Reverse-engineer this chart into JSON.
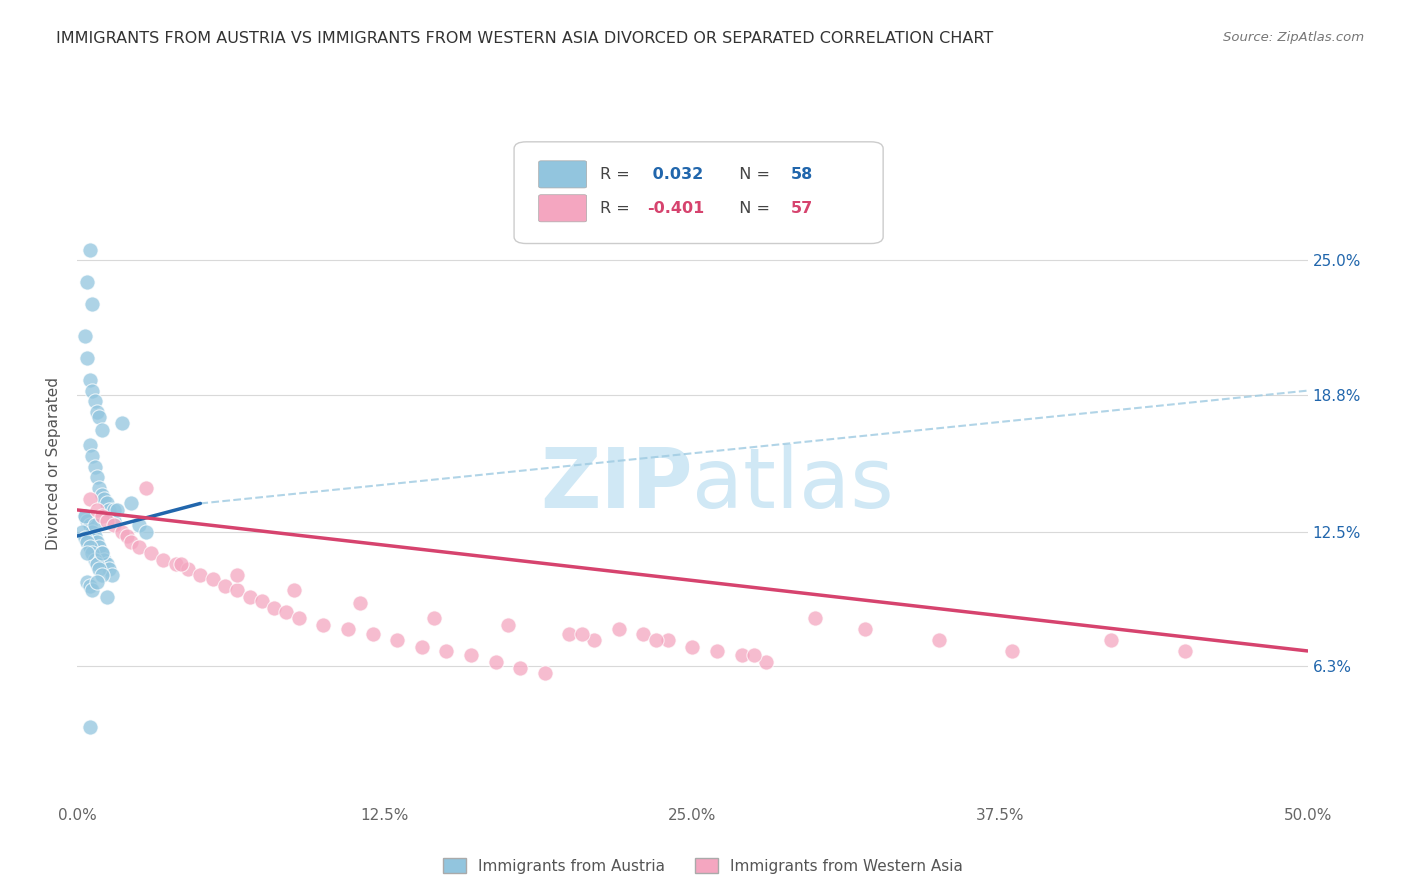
{
  "title": "IMMIGRANTS FROM AUSTRIA VS IMMIGRANTS FROM WESTERN ASIA DIVORCED OR SEPARATED CORRELATION CHART",
  "source": "Source: ZipAtlas.com",
  "ylabel": "Divorced or Separated",
  "xlim": [
    0.0,
    50.0
  ],
  "ylim": [
    0.0,
    31.25
  ],
  "right_yticks": [
    6.3,
    12.5,
    18.8,
    25.0
  ],
  "right_ytick_labels": [
    "6.3%",
    "12.5%",
    "18.8%",
    "25.0%"
  ],
  "xtick_positions": [
    0.0,
    12.5,
    25.0,
    37.5,
    50.0
  ],
  "xtick_labels": [
    "0.0%",
    "12.5%",
    "25.0%",
    "37.5%",
    "50.0%"
  ],
  "austria_color": "#92c5de",
  "western_asia_color": "#f4a6c0",
  "trend_blue_color": "#2166ac",
  "trend_pink_color": "#d6436e",
  "trend_dashed_color": "#9ecae1",
  "watermark_color": "#d0e8f5",
  "background_color": "#ffffff",
  "grid_color": "#d9d9d9",
  "austria_legend_color": "#92c5de",
  "western_asia_legend_color": "#f4a6c0",
  "legend_R1": "R =  0.032",
  "legend_N1": "N = 58",
  "legend_R2": "R = -0.401",
  "legend_N2": "N = 57",
  "legend_label1": "Immigrants from Austria",
  "legend_label2": "Immigrants from Western Asia",
  "austria_x": [
    0.5,
    1.8,
    0.4,
    0.6,
    0.3,
    0.4,
    0.5,
    0.6,
    0.7,
    0.8,
    0.9,
    1.0,
    0.5,
    0.6,
    0.7,
    0.8,
    0.9,
    1.0,
    1.1,
    1.2,
    1.3,
    0.3,
    0.4,
    0.5,
    0.6,
    0.7,
    0.8,
    0.9,
    1.0,
    1.1,
    1.2,
    1.3,
    1.4,
    1.5,
    0.2,
    0.3,
    0.4,
    0.5,
    0.6,
    0.7,
    0.8,
    0.9,
    1.0,
    0.4,
    0.5,
    0.6,
    1.5,
    2.5,
    0.3,
    0.4,
    2.2,
    2.8,
    0.5,
    0.8,
    1.2,
    1.0,
    0.7,
    1.6
  ],
  "austria_y": [
    25.5,
    17.5,
    24.0,
    23.0,
    21.5,
    20.5,
    19.5,
    19.0,
    18.5,
    18.0,
    17.8,
    17.2,
    16.5,
    16.0,
    15.5,
    15.0,
    14.5,
    14.2,
    14.0,
    13.8,
    13.5,
    13.2,
    13.0,
    12.8,
    12.5,
    12.3,
    12.0,
    11.8,
    11.5,
    11.2,
    11.0,
    10.8,
    10.5,
    13.5,
    12.5,
    12.2,
    12.0,
    11.8,
    11.5,
    11.2,
    11.0,
    10.8,
    10.5,
    10.2,
    10.0,
    9.8,
    13.0,
    12.8,
    13.2,
    11.5,
    13.8,
    12.5,
    3.5,
    10.2,
    9.5,
    11.5,
    12.8,
    13.5
  ],
  "western_asia_x": [
    0.5,
    0.8,
    1.0,
    1.2,
    1.5,
    1.8,
    2.0,
    2.2,
    2.5,
    3.0,
    3.5,
    4.0,
    4.5,
    5.0,
    5.5,
    6.0,
    6.5,
    7.0,
    7.5,
    8.0,
    8.5,
    9.0,
    10.0,
    11.0,
    12.0,
    13.0,
    14.0,
    15.0,
    16.0,
    17.0,
    18.0,
    19.0,
    20.0,
    21.0,
    22.0,
    23.0,
    24.0,
    25.0,
    26.0,
    27.0,
    28.0,
    30.0,
    32.0,
    35.0,
    38.0,
    42.0,
    45.0,
    2.8,
    4.2,
    6.5,
    8.8,
    11.5,
    14.5,
    17.5,
    20.5,
    23.5,
    27.5
  ],
  "western_asia_y": [
    14.0,
    13.5,
    13.2,
    13.0,
    12.8,
    12.5,
    12.3,
    12.0,
    11.8,
    11.5,
    11.2,
    11.0,
    10.8,
    10.5,
    10.3,
    10.0,
    9.8,
    9.5,
    9.3,
    9.0,
    8.8,
    8.5,
    8.2,
    8.0,
    7.8,
    7.5,
    7.2,
    7.0,
    6.8,
    6.5,
    6.2,
    6.0,
    7.8,
    7.5,
    8.0,
    7.8,
    7.5,
    7.2,
    7.0,
    6.8,
    6.5,
    8.5,
    8.0,
    7.5,
    7.0,
    7.5,
    7.0,
    14.5,
    11.0,
    10.5,
    9.8,
    9.2,
    8.5,
    8.2,
    7.8,
    7.5,
    6.8
  ],
  "austria_trend_x0": 0.0,
  "austria_trend_x1": 5.0,
  "austria_trend_y0": 12.3,
  "austria_trend_y1": 13.8,
  "austria_dashed_x0": 5.0,
  "austria_dashed_x1": 50.0,
  "austria_dashed_y0": 13.8,
  "austria_dashed_y1": 19.0,
  "wa_trend_x0": 0.0,
  "wa_trend_x1": 50.0,
  "wa_trend_y0": 13.5,
  "wa_trend_y1": 7.0
}
